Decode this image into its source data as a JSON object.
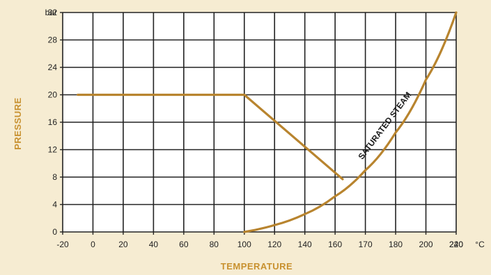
{
  "colors": {
    "background": "#f6ecd2",
    "plot_background": "#ffffff",
    "grid": "#222222",
    "series": "#b8842e",
    "axis_title": "#c8912f"
  },
  "chart_data": {
    "type": "line",
    "xlabel": "TEMPERATURE",
    "ylabel": "PRESSURE",
    "x_unit": "°C",
    "y_unit": "bar",
    "xlim": [
      -20,
      240
    ],
    "ylim": [
      0,
      32
    ],
    "x_ticks": [
      "-20",
      "0",
      "20",
      "40",
      "60",
      "80",
      "100",
      "120",
      "140",
      "160",
      "170",
      "180",
      "200",
      "220",
      "240"
    ],
    "y_ticks": [
      "0",
      "4",
      "8",
      "12",
      "16",
      "20",
      "24",
      "28",
      "32"
    ],
    "grid": true,
    "annotations": [
      {
        "text": "SATURATED STEAM"
      }
    ],
    "series": [
      {
        "points": [
          [
            -10,
            20
          ],
          [
            100,
            20
          ],
          [
            165,
            7.7
          ]
        ]
      },
      {
        "name": "SATURATED STEAM",
        "points": [
          [
            100,
            0
          ],
          [
            120,
            1
          ],
          [
            140,
            2.6
          ],
          [
            160,
            5.2
          ],
          [
            180,
            9.0
          ],
          [
            200,
            14.5
          ],
          [
            220,
            22.2
          ],
          [
            240,
            32
          ]
        ]
      }
    ]
  }
}
